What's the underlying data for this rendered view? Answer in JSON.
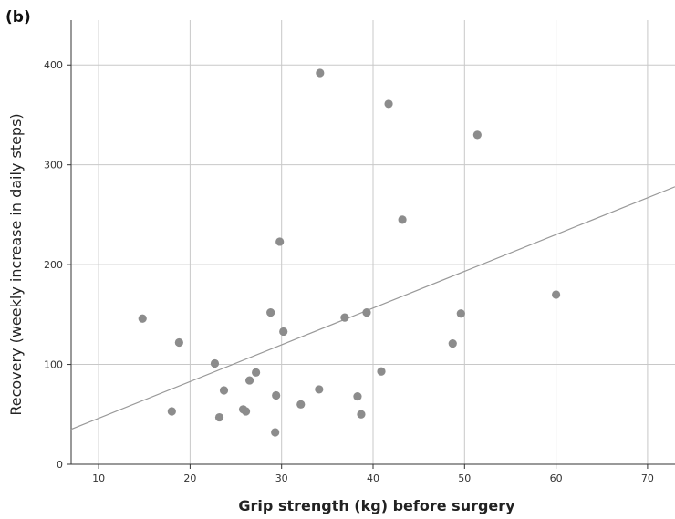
{
  "panel_label": "(b)",
  "chart_data": {
    "type": "scatter",
    "xlabel": "Grip strength (kg) before surgery",
    "ylabel": "Recovery (weekly increase in daily steps)",
    "xlim": [
      7,
      73
    ],
    "ylim": [
      0,
      445
    ],
    "xticks": [
      10,
      20,
      30,
      40,
      50,
      60,
      70
    ],
    "yticks": [
      0,
      100,
      200,
      300,
      400
    ],
    "grid": true,
    "point_color": "#8c8c8c",
    "points": [
      {
        "x": 14.8,
        "y": 146
      },
      {
        "x": 18.0,
        "y": 53
      },
      {
        "x": 18.8,
        "y": 122
      },
      {
        "x": 22.7,
        "y": 101
      },
      {
        "x": 23.2,
        "y": 47
      },
      {
        "x": 23.7,
        "y": 74
      },
      {
        "x": 25.8,
        "y": 55
      },
      {
        "x": 26.1,
        "y": 53
      },
      {
        "x": 26.5,
        "y": 84
      },
      {
        "x": 27.2,
        "y": 92
      },
      {
        "x": 28.8,
        "y": 152
      },
      {
        "x": 29.3,
        "y": 32
      },
      {
        "x": 29.4,
        "y": 69
      },
      {
        "x": 29.8,
        "y": 223
      },
      {
        "x": 30.2,
        "y": 133
      },
      {
        "x": 32.1,
        "y": 60
      },
      {
        "x": 34.1,
        "y": 75
      },
      {
        "x": 34.2,
        "y": 392
      },
      {
        "x": 36.9,
        "y": 147
      },
      {
        "x": 38.3,
        "y": 68
      },
      {
        "x": 38.7,
        "y": 50
      },
      {
        "x": 39.3,
        "y": 152
      },
      {
        "x": 40.9,
        "y": 93
      },
      {
        "x": 41.7,
        "y": 361
      },
      {
        "x": 43.2,
        "y": 245
      },
      {
        "x": 48.7,
        "y": 121
      },
      {
        "x": 49.6,
        "y": 151
      },
      {
        "x": 51.4,
        "y": 330
      },
      {
        "x": 60.0,
        "y": 170
      }
    ],
    "fit_line": {
      "x": [
        7,
        73
      ],
      "y": [
        35,
        278
      ]
    }
  }
}
